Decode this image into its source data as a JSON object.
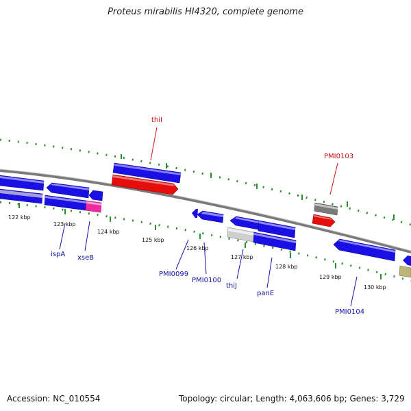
{
  "title": "Proteus mirabilis HI4320, complete genome",
  "footer": {
    "accession": "Accession: NC_010554",
    "topology": "Topology: circular; Length: 4,063,606 bp; Genes: 3,729"
  },
  "colors": {
    "forward": "#1a10e6",
    "rna": "#e60d0d",
    "pseudo": "#7a7a7a",
    "pink": "#ee2ba0",
    "light_gray": "#cfcfcf",
    "olive": "#bdb47a",
    "lavender": "#a7a0d8",
    "tick": "#2a8f2a",
    "backbone": "#888888",
    "red_label": "#cc1111",
    "blue_label": "#1111aa"
  },
  "scale_labels": [
    "122 kbp",
    "123 kbp",
    "124 kbp",
    "125 kbp",
    "126 kbp",
    "127 kbp",
    "128 kbp",
    "129 kbp",
    "130 kbp"
  ],
  "gene_labels_top": [
    "thiI",
    "PMI0103"
  ],
  "gene_labels_bottom": [
    "ispA",
    "xseB",
    "PMI0099",
    "PMI0100",
    "thiJ",
    "panE",
    "PMI0104"
  ]
}
